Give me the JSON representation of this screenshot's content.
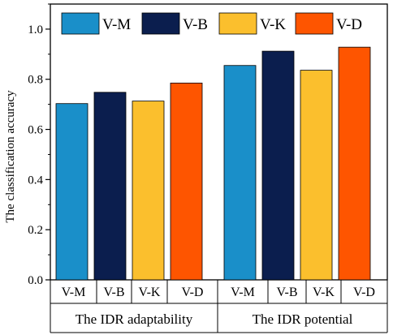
{
  "chart_data": {
    "type": "bar",
    "ylabel": "The classification accuracy",
    "ylim": [
      0,
      1.1
    ],
    "yticks": [
      "0.0",
      "0.2",
      "0.4",
      "0.6",
      "0.8",
      "1.0"
    ],
    "grid": false,
    "legend_position": "top",
    "groups": [
      {
        "label": "The IDR adaptability",
        "categories": [
          "V-M",
          "V-B",
          "V-K",
          "V-D"
        ]
      },
      {
        "label": "The IDR potential",
        "categories": [
          "V-M",
          "V-B",
          "V-K",
          "V-D"
        ]
      }
    ],
    "series": [
      {
        "name": "V-M",
        "color": "#1a8fc9",
        "values": [
          0.703,
          0.855
        ]
      },
      {
        "name": "V-B",
        "color": "#0b1e4e",
        "values": [
          0.748,
          0.912
        ]
      },
      {
        "name": "V-K",
        "color": "#fbbf2d",
        "values": [
          0.713,
          0.836
        ]
      },
      {
        "name": "V-D",
        "color": "#fe5500",
        "values": [
          0.785,
          0.928
        ]
      }
    ]
  }
}
